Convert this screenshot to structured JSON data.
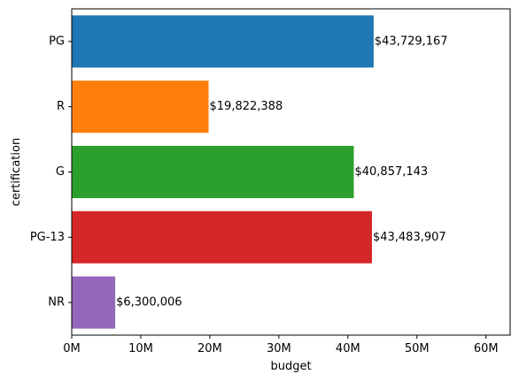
{
  "chart_data": {
    "type": "bar",
    "orientation": "horizontal",
    "title": "",
    "xlabel": "budget",
    "ylabel": "certification",
    "categories": [
      "PG",
      "R",
      "G",
      "PG-13",
      "NR"
    ],
    "values": [
      43729167,
      19822388,
      40857143,
      43483907,
      6300006
    ],
    "data_labels": [
      "$43,729,167",
      "$19,822,388",
      "$40,857,143",
      "$43,483,907",
      "$6,300,006"
    ],
    "colors": [
      "#1f77b4",
      "#ff7f0e",
      "#2ca02c",
      "#d62728",
      "#9467bd"
    ],
    "xlim": [
      0,
      63500000
    ],
    "xticks": [
      0,
      10000000,
      20000000,
      30000000,
      40000000,
      50000000,
      60000000
    ],
    "xtick_labels": [
      "0M",
      "10M",
      "20M",
      "30M",
      "40M",
      "50M",
      "60M"
    ],
    "grid": false,
    "legend": "none"
  }
}
